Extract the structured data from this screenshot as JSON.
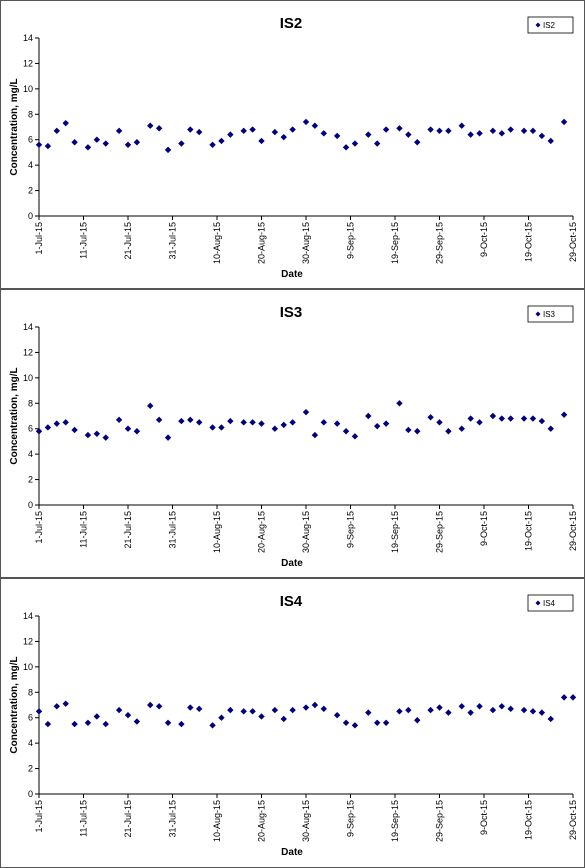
{
  "chart_data": [
    {
      "type": "scatter",
      "title": "IS2",
      "xlabel": "Date",
      "ylabel": "Concentration, mg/L",
      "ylim": [
        0,
        14
      ],
      "yticks": [
        "0",
        "2",
        "4",
        "6",
        "8",
        "10",
        "12",
        "14"
      ],
      "xlim": [
        "2015-07-01",
        "2015-10-29"
      ],
      "xtick_labels": [
        "1-Jul-15",
        "11-Jul-15",
        "21-Jul-15",
        "31-Jul-15",
        "10-Aug-15",
        "20-Aug-15",
        "30-Aug-15",
        "9-Sep-15",
        "19-Sep-15",
        "29-Sep-15",
        "9-Oct-15",
        "19-Oct-15",
        "29-Oct-15"
      ],
      "legend": "top-right",
      "grid": false,
      "marker_color": "#000080",
      "series": [
        {
          "name": "IS2",
          "x": [
            "2015-07-01",
            "2015-07-03",
            "2015-07-05",
            "2015-07-07",
            "2015-07-09",
            "2015-07-12",
            "2015-07-14",
            "2015-07-16",
            "2015-07-19",
            "2015-07-21",
            "2015-07-23",
            "2015-07-26",
            "2015-07-28",
            "2015-07-30",
            "2015-08-02",
            "2015-08-04",
            "2015-08-06",
            "2015-08-09",
            "2015-08-11",
            "2015-08-13",
            "2015-08-16",
            "2015-08-18",
            "2015-08-20",
            "2015-08-23",
            "2015-08-25",
            "2015-08-27",
            "2015-08-30",
            "2015-09-01",
            "2015-09-03",
            "2015-09-06",
            "2015-09-08",
            "2015-09-10",
            "2015-09-13",
            "2015-09-15",
            "2015-09-17",
            "2015-09-20",
            "2015-09-22",
            "2015-09-24",
            "2015-09-27",
            "2015-09-29",
            "2015-10-01",
            "2015-10-04",
            "2015-10-06",
            "2015-10-08",
            "2015-10-11",
            "2015-10-13",
            "2015-10-15",
            "2015-10-18",
            "2015-10-20",
            "2015-10-22",
            "2015-10-24",
            "2015-10-27"
          ],
          "y": [
            5.6,
            5.5,
            6.7,
            7.3,
            5.8,
            5.4,
            6.0,
            5.7,
            6.7,
            5.6,
            5.8,
            7.1,
            6.9,
            5.2,
            5.7,
            6.8,
            6.6,
            5.6,
            5.9,
            6.4,
            6.7,
            6.8,
            5.9,
            6.6,
            6.2,
            6.8,
            7.4,
            7.1,
            6.5,
            6.3,
            5.4,
            5.7,
            6.4,
            5.7,
            6.8,
            6.9,
            6.4,
            5.8,
            6.8,
            6.7,
            6.7,
            7.1,
            6.4,
            6.5,
            6.7,
            6.5,
            6.8,
            6.7,
            6.7,
            6.3,
            5.9,
            7.4
          ]
        }
      ]
    },
    {
      "type": "scatter",
      "title": "IS3",
      "xlabel": "Date",
      "ylabel": "Concentration, mg/L",
      "ylim": [
        0,
        14
      ],
      "yticks": [
        "0",
        "2",
        "4",
        "6",
        "8",
        "10",
        "12",
        "14"
      ],
      "xlim": [
        "2015-07-01",
        "2015-10-29"
      ],
      "xtick_labels": [
        "1-Jul-15",
        "11-Jul-15",
        "21-Jul-15",
        "31-Jul-15",
        "10-Aug-15",
        "20-Aug-15",
        "30-Aug-15",
        "9-Sep-15",
        "19-Sep-15",
        "29-Sep-15",
        "9-Oct-15",
        "19-Oct-15",
        "29-Oct-15"
      ],
      "legend": "top-right",
      "grid": false,
      "marker_color": "#000080",
      "series": [
        {
          "name": "IS3",
          "x": [
            "2015-07-01",
            "2015-07-03",
            "2015-07-05",
            "2015-07-07",
            "2015-07-09",
            "2015-07-12",
            "2015-07-14",
            "2015-07-16",
            "2015-07-19",
            "2015-07-21",
            "2015-07-23",
            "2015-07-26",
            "2015-07-28",
            "2015-07-30",
            "2015-08-02",
            "2015-08-04",
            "2015-08-06",
            "2015-08-09",
            "2015-08-11",
            "2015-08-13",
            "2015-08-16",
            "2015-08-18",
            "2015-08-20",
            "2015-08-23",
            "2015-08-25",
            "2015-08-27",
            "2015-08-30",
            "2015-09-01",
            "2015-09-03",
            "2015-09-06",
            "2015-09-08",
            "2015-09-10",
            "2015-09-13",
            "2015-09-15",
            "2015-09-17",
            "2015-09-20",
            "2015-09-22",
            "2015-09-24",
            "2015-09-27",
            "2015-09-29",
            "2015-10-01",
            "2015-10-04",
            "2015-10-06",
            "2015-10-08",
            "2015-10-11",
            "2015-10-13",
            "2015-10-15",
            "2015-10-18",
            "2015-10-20",
            "2015-10-22",
            "2015-10-24",
            "2015-10-27"
          ],
          "y": [
            5.8,
            6.1,
            6.4,
            6.5,
            5.9,
            5.5,
            5.6,
            5.3,
            6.7,
            6.0,
            5.8,
            7.8,
            6.7,
            5.3,
            6.6,
            6.7,
            6.5,
            6.1,
            6.1,
            6.6,
            6.5,
            6.5,
            6.4,
            6.0,
            6.3,
            6.5,
            7.3,
            5.5,
            6.5,
            6.4,
            5.8,
            5.4,
            7.0,
            6.2,
            6.4,
            8.0,
            5.9,
            5.8,
            6.9,
            6.5,
            5.8,
            6.0,
            6.8,
            6.5,
            7.0,
            6.8,
            6.8,
            6.8,
            6.8,
            6.6,
            6.0,
            7.1
          ]
        }
      ]
    },
    {
      "type": "scatter",
      "title": "IS4",
      "xlabel": "Date",
      "ylabel": "Concentration, mg/L",
      "ylim": [
        0,
        14
      ],
      "yticks": [
        "0",
        "2",
        "4",
        "6",
        "8",
        "10",
        "12",
        "14"
      ],
      "xlim": [
        "2015-07-01",
        "2015-10-29"
      ],
      "xtick_labels": [
        "1-Jul-15",
        "11-Jul-15",
        "21-Jul-15",
        "31-Jul-15",
        "10-Aug-15",
        "20-Aug-15",
        "30-Aug-15",
        "9-Sep-15",
        "19-Sep-15",
        "29-Sep-15",
        "9-Oct-15",
        "19-Oct-15",
        "29-Oct-15"
      ],
      "legend": "top-right",
      "grid": false,
      "marker_color": "#000080",
      "series": [
        {
          "name": "IS4",
          "x": [
            "2015-07-01",
            "2015-07-03",
            "2015-07-05",
            "2015-07-07",
            "2015-07-09",
            "2015-07-12",
            "2015-07-14",
            "2015-07-16",
            "2015-07-19",
            "2015-07-21",
            "2015-07-23",
            "2015-07-26",
            "2015-07-28",
            "2015-07-30",
            "2015-08-02",
            "2015-08-04",
            "2015-08-06",
            "2015-08-09",
            "2015-08-11",
            "2015-08-13",
            "2015-08-16",
            "2015-08-18",
            "2015-08-20",
            "2015-08-23",
            "2015-08-25",
            "2015-08-27",
            "2015-08-30",
            "2015-09-01",
            "2015-09-03",
            "2015-09-06",
            "2015-09-08",
            "2015-09-10",
            "2015-09-13",
            "2015-09-15",
            "2015-09-17",
            "2015-09-20",
            "2015-09-22",
            "2015-09-24",
            "2015-09-27",
            "2015-09-29",
            "2015-10-01",
            "2015-10-04",
            "2015-10-06",
            "2015-10-08",
            "2015-10-11",
            "2015-10-13",
            "2015-10-15",
            "2015-10-18",
            "2015-10-20",
            "2015-10-22",
            "2015-10-24",
            "2015-10-27",
            "2015-10-29"
          ],
          "y": [
            6.5,
            5.5,
            6.9,
            7.1,
            5.5,
            5.6,
            6.1,
            5.5,
            6.6,
            6.2,
            5.7,
            7.0,
            6.9,
            5.6,
            5.5,
            6.8,
            6.7,
            5.4,
            6.0,
            6.6,
            6.5,
            6.5,
            6.1,
            6.6,
            5.9,
            6.6,
            6.8,
            7.0,
            6.7,
            6.2,
            5.6,
            5.4,
            6.4,
            5.6,
            5.6,
            6.5,
            6.6,
            5.8,
            6.6,
            6.8,
            6.4,
            6.9,
            6.4,
            6.9,
            6.6,
            6.9,
            6.7,
            6.6,
            6.5,
            6.4,
            5.9,
            7.6,
            7.6
          ]
        }
      ]
    }
  ]
}
